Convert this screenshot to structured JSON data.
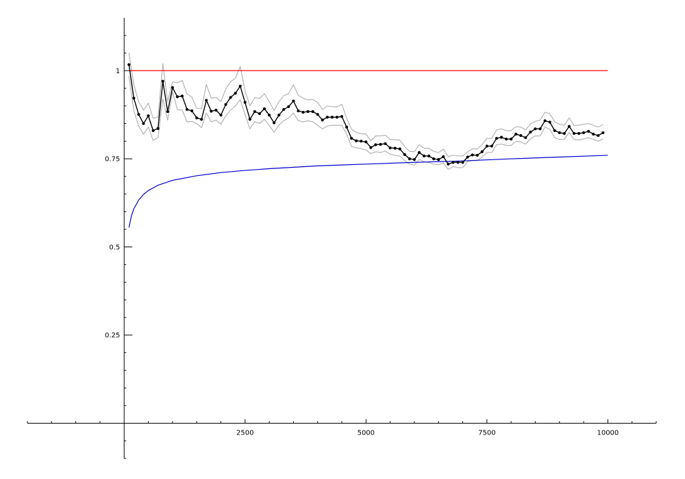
{
  "chart_data": {
    "type": "line",
    "title": "",
    "xlabel": "",
    "ylabel": "",
    "xlim": [
      -2000,
      11000
    ],
    "ylim": [
      -0.1,
      1.15
    ],
    "x_ticks": [
      {
        "value": 2500,
        "label": "2500"
      },
      {
        "value": 5000,
        "label": "5000"
      },
      {
        "value": 7500,
        "label": "7500"
      },
      {
        "value": 10000,
        "label": "10000"
      }
    ],
    "y_ticks": [
      {
        "value": 0.25,
        "label": "0.25"
      },
      {
        "value": 0.5,
        "label": "0.5"
      },
      {
        "value": 0.75,
        "label": "0.75"
      },
      {
        "value": 1,
        "label": "1"
      }
    ],
    "x_minor_step": 500,
    "y_minor_step": 0.05,
    "grid": false,
    "series": [
      {
        "role": "reference-line",
        "color": "#ff0000",
        "x": [
          100,
          10000
        ],
        "y": [
          1,
          1
        ]
      },
      {
        "role": "theoretical-curve",
        "color": "#0000cc",
        "x": [
          100,
          150,
          200,
          300,
          400,
          500,
          700,
          1000,
          1500,
          2000,
          2500,
          3000,
          4000,
          5000,
          6000,
          7000,
          8000,
          9000,
          10000
        ],
        "y": [
          0.555,
          0.588,
          0.608,
          0.633,
          0.649,
          0.66,
          0.675,
          0.689,
          0.702,
          0.711,
          0.717,
          0.722,
          0.73,
          0.735,
          0.74,
          0.744,
          0.75,
          0.755,
          0.76
        ]
      },
      {
        "role": "upper-band",
        "color": "#b3b3b3",
        "x": [
          100,
          200,
          300,
          400,
          500,
          600,
          700,
          800,
          900,
          1000,
          1100,
          1200,
          1300,
          1400,
          1500,
          1600,
          1700,
          1800,
          1900,
          2000,
          2100,
          2200,
          2300,
          2400,
          2500,
          2600,
          2700,
          2800,
          2900,
          3000,
          3100,
          3200,
          3300,
          3400,
          3500,
          3600,
          3700,
          3800,
          3900,
          4000,
          4100,
          4200,
          4300,
          4400,
          4500,
          4600,
          4700,
          4800,
          4900,
          5000,
          5100,
          5200,
          5300,
          5400,
          5500,
          5600,
          5700,
          5800,
          5900,
          6000,
          6100,
          6200,
          6300,
          6400,
          6500,
          6600,
          6700,
          6800,
          6900,
          7000,
          7100,
          7200,
          7300,
          7400,
          7500,
          7600,
          7700,
          7800,
          7900,
          8000,
          8100,
          8200,
          8300,
          8400,
          8500,
          8600,
          8700,
          8800,
          8900,
          9000,
          9100,
          9200,
          9300,
          9400,
          9500,
          9600,
          9700,
          9800,
          9900
        ],
        "y": [
          1.05,
          0.96,
          0.912,
          0.888,
          0.908,
          0.865,
          0.868,
          1.02,
          0.912,
          0.968,
          0.966,
          0.972,
          0.934,
          0.925,
          0.893,
          0.893,
          0.961,
          0.922,
          0.924,
          0.912,
          0.948,
          0.968,
          0.979,
          1.012,
          0.943,
          0.9,
          0.924,
          0.921,
          0.935,
          0.912,
          0.887,
          0.912,
          0.929,
          0.935,
          0.96,
          0.93,
          0.922,
          0.917,
          0.918,
          0.91,
          0.89,
          0.9,
          0.898,
          0.897,
          0.905,
          0.865,
          0.834,
          0.825,
          0.821,
          0.82,
          0.801,
          0.815,
          0.815,
          0.817,
          0.805,
          0.804,
          0.803,
          0.785,
          0.771,
          0.77,
          0.79,
          0.78,
          0.78,
          0.771,
          0.768,
          0.778,
          0.756,
          0.76,
          0.758,
          0.758,
          0.77,
          0.778,
          0.778,
          0.79,
          0.808,
          0.808,
          0.832,
          0.835,
          0.83,
          0.83,
          0.841,
          0.84,
          0.832,
          0.849,
          0.856,
          0.86,
          0.882,
          0.878,
          0.855,
          0.848,
          0.845,
          0.866,
          0.845,
          0.845,
          0.848,
          0.85,
          0.845,
          0.84,
          0.847
        ]
      },
      {
        "role": "lower-band",
        "color": "#b3b3b3",
        "x": [
          100,
          200,
          300,
          400,
          500,
          600,
          700,
          800,
          900,
          1000,
          1100,
          1200,
          1300,
          1400,
          1500,
          1600,
          1700,
          1800,
          1900,
          2000,
          2100,
          2200,
          2300,
          2400,
          2500,
          2600,
          2700,
          2800,
          2900,
          3000,
          3100,
          3200,
          3300,
          3400,
          3500,
          3600,
          3700,
          3800,
          3900,
          4000,
          4100,
          4200,
          4300,
          4400,
          4500,
          4600,
          4700,
          4800,
          4900,
          5000,
          5100,
          5200,
          5300,
          5400,
          5500,
          5600,
          5700,
          5800,
          5900,
          6000,
          6100,
          6200,
          6300,
          6400,
          6500,
          6600,
          6700,
          6800,
          6900,
          7000,
          7100,
          7200,
          7300,
          7400,
          7500,
          7600,
          7700,
          7800,
          7900,
          8000,
          8100,
          8200,
          8300,
          8400,
          8500,
          8600,
          8700,
          8800,
          8900,
          9000,
          9100,
          9200,
          9300,
          9400,
          9500,
          9600,
          9700,
          9800,
          9900
        ],
        "y": [
          0.985,
          0.887,
          0.843,
          0.82,
          0.84,
          0.802,
          0.81,
          0.92,
          0.86,
          0.94,
          0.89,
          0.888,
          0.855,
          0.856,
          0.85,
          0.838,
          0.88,
          0.855,
          0.86,
          0.848,
          0.872,
          0.888,
          0.9,
          0.918,
          0.875,
          0.835,
          0.855,
          0.85,
          0.862,
          0.845,
          0.825,
          0.846,
          0.858,
          0.866,
          0.88,
          0.858,
          0.855,
          0.858,
          0.855,
          0.845,
          0.835,
          0.843,
          0.845,
          0.845,
          0.845,
          0.82,
          0.785,
          0.781,
          0.779,
          0.775,
          0.765,
          0.77,
          0.768,
          0.772,
          0.763,
          0.76,
          0.758,
          0.745,
          0.735,
          0.732,
          0.748,
          0.742,
          0.74,
          0.735,
          0.733,
          0.738,
          0.72,
          0.728,
          0.725,
          0.725,
          0.742,
          0.745,
          0.745,
          0.755,
          0.768,
          0.768,
          0.79,
          0.792,
          0.788,
          0.788,
          0.8,
          0.798,
          0.792,
          0.807,
          0.815,
          0.815,
          0.84,
          0.834,
          0.81,
          0.805,
          0.805,
          0.825,
          0.805,
          0.803,
          0.806,
          0.81,
          0.805,
          0.8,
          0.806
        ]
      },
      {
        "role": "estimate",
        "color": "#000000",
        "markers": true,
        "x": [
          100,
          200,
          300,
          400,
          500,
          600,
          700,
          800,
          900,
          1000,
          1100,
          1200,
          1300,
          1400,
          1500,
          1600,
          1700,
          1800,
          1900,
          2000,
          2100,
          2200,
          2300,
          2400,
          2500,
          2600,
          2700,
          2800,
          2900,
          3000,
          3100,
          3200,
          3300,
          3400,
          3500,
          3600,
          3700,
          3800,
          3900,
          4000,
          4100,
          4200,
          4300,
          4400,
          4500,
          4600,
          4700,
          4800,
          4900,
          5000,
          5100,
          5200,
          5300,
          5400,
          5500,
          5600,
          5700,
          5800,
          5900,
          6000,
          6100,
          6200,
          6300,
          6400,
          6500,
          6600,
          6700,
          6800,
          6900,
          7000,
          7100,
          7200,
          7300,
          7400,
          7500,
          7600,
          7700,
          7800,
          7900,
          8000,
          8100,
          8200,
          8300,
          8400,
          8500,
          8600,
          8700,
          8800,
          8900,
          9000,
          9100,
          9200,
          9300,
          9400,
          9500,
          9600,
          9700,
          9800,
          9900
        ],
        "y": [
          1.017,
          0.922,
          0.876,
          0.85,
          0.872,
          0.83,
          0.836,
          0.97,
          0.884,
          0.952,
          0.926,
          0.928,
          0.89,
          0.886,
          0.866,
          0.862,
          0.916,
          0.885,
          0.888,
          0.874,
          0.904,
          0.924,
          0.936,
          0.956,
          0.91,
          0.862,
          0.884,
          0.878,
          0.892,
          0.874,
          0.852,
          0.874,
          0.89,
          0.898,
          0.914,
          0.886,
          0.882,
          0.884,
          0.884,
          0.876,
          0.86,
          0.868,
          0.868,
          0.868,
          0.87,
          0.84,
          0.808,
          0.801,
          0.8,
          0.798,
          0.782,
          0.79,
          0.791,
          0.793,
          0.781,
          0.78,
          0.778,
          0.762,
          0.75,
          0.748,
          0.768,
          0.758,
          0.758,
          0.75,
          0.748,
          0.756,
          0.735,
          0.74,
          0.74,
          0.74,
          0.755,
          0.761,
          0.76,
          0.77,
          0.786,
          0.786,
          0.808,
          0.811,
          0.806,
          0.806,
          0.82,
          0.816,
          0.81,
          0.826,
          0.835,
          0.835,
          0.858,
          0.854,
          0.83,
          0.824,
          0.822,
          0.842,
          0.822,
          0.822,
          0.824,
          0.828,
          0.82,
          0.816,
          0.824
        ]
      }
    ]
  }
}
